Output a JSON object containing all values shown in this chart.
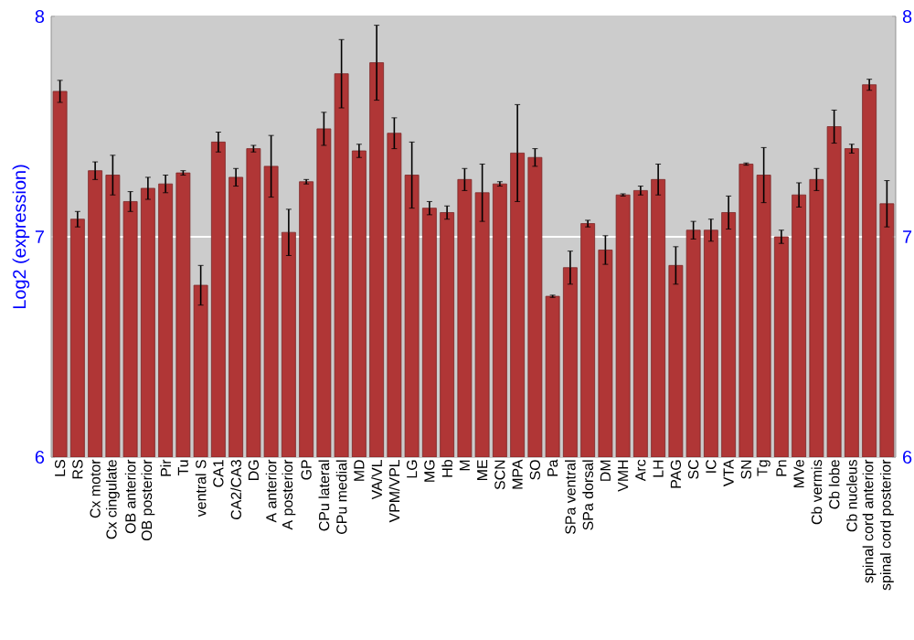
{
  "chart_data": {
    "type": "bar",
    "ylabel": "Log2 (expression)",
    "categories": [
      "LS",
      "RS",
      "Cx motor",
      "Cx cingulate",
      "OB anterior",
      "OB posterior",
      "Pir",
      "Tu",
      "ventral S",
      "CA1",
      "CA2/CA3",
      "DG",
      "A anterior",
      "A posterior",
      "GP",
      "CPu lateral",
      "CPu medial",
      "MD",
      "VA/VL",
      "VPM/VPL",
      "LG",
      "MG",
      "Hb",
      "M",
      "ME",
      "SCN",
      "MPA",
      "SO",
      "Pa",
      "SPa ventral",
      "SPa dorsal",
      "DM",
      "VMH",
      "Arc",
      "LH",
      "PAG",
      "SC",
      "IC",
      "VTA",
      "SN",
      "Tg",
      "Pn",
      "MVe",
      "Cb vermis",
      "Cb lobe",
      "Cb nucleus",
      "spinal cord anterior",
      "spinal cord posterior"
    ],
    "values": [
      7.66,
      7.08,
      7.3,
      7.28,
      7.16,
      7.22,
      7.24,
      7.29,
      6.78,
      7.43,
      7.27,
      7.4,
      7.32,
      7.02,
      7.25,
      7.49,
      7.74,
      7.39,
      7.79,
      7.47,
      7.28,
      7.13,
      7.11,
      7.26,
      7.2,
      7.24,
      7.38,
      7.36,
      6.73,
      6.86,
      7.06,
      6.94,
      7.19,
      7.21,
      7.26,
      6.87,
      7.03,
      7.03,
      7.11,
      7.33,
      7.28,
      7.0,
      7.19,
      7.26,
      7.5,
      7.4,
      7.69,
      7.15
    ],
    "errors": [
      0.05,
      0.035,
      0.04,
      0.09,
      0.045,
      0.05,
      0.04,
      0.01,
      0.09,
      0.045,
      0.04,
      0.015,
      0.14,
      0.105,
      0.01,
      0.075,
      0.155,
      0.03,
      0.17,
      0.07,
      0.15,
      0.03,
      0.03,
      0.05,
      0.13,
      0.01,
      0.22,
      0.04,
      0.005,
      0.075,
      0.015,
      0.065,
      0.005,
      0.02,
      0.07,
      0.085,
      0.04,
      0.05,
      0.075,
      0.005,
      0.125,
      0.03,
      0.055,
      0.05,
      0.075,
      0.02,
      0.025,
      0.105
    ],
    "color": "#b03636",
    "ylim": [
      6,
      8
    ],
    "yticks": [
      6,
      7,
      8
    ],
    "y2lim": [
      6,
      8
    ],
    "y2ticks": [
      6,
      7,
      8
    ],
    "grid": "y"
  }
}
